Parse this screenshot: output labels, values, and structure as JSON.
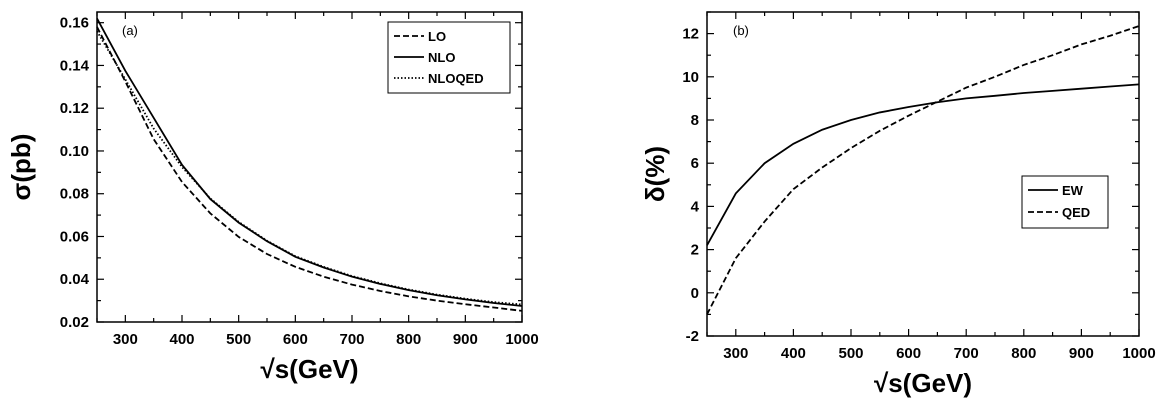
{
  "chart_data": [
    {
      "type": "line",
      "panel_label": "(a)",
      "xlabel": "√s(GeV)",
      "ylabel": "σ(pb)",
      "xlim": [
        250,
        1000
      ],
      "ylim": [
        0.02,
        0.165
      ],
      "xticks": [
        "300",
        "400",
        "500",
        "600",
        "700",
        "800",
        "900",
        "1000"
      ],
      "yticks": [
        "0.02",
        "0.04",
        "0.06",
        "0.08",
        "0.10",
        "0.12",
        "0.14",
        "0.16"
      ],
      "legend_position": "top-right",
      "x": [
        250,
        300,
        350,
        400,
        450,
        500,
        550,
        600,
        650,
        700,
        750,
        800,
        850,
        900,
        950,
        1000
      ],
      "series": [
        {
          "name": "LO",
          "style": "dashed",
          "values": [
            0.158,
            0.1325,
            0.1055,
            0.0855,
            0.0708,
            0.0598,
            0.0518,
            0.0458,
            0.0412,
            0.0375,
            0.0345,
            0.032,
            0.03,
            0.0283,
            0.0268,
            0.0252
          ]
        },
        {
          "name": "NLO",
          "style": "solid",
          "values": [
            0.162,
            0.1375,
            0.1155,
            0.0935,
            0.0775,
            0.0665,
            0.0578,
            0.0505,
            0.0455,
            0.0412,
            0.0378,
            0.0349,
            0.0325,
            0.0306,
            0.0289,
            0.0275
          ]
        },
        {
          "name": "NLOQED",
          "style": "dotted",
          "values": [
            0.156,
            0.1335,
            0.1105,
            0.0925,
            0.0778,
            0.0668,
            0.058,
            0.0508,
            0.0458,
            0.0415,
            0.0381,
            0.0352,
            0.0328,
            0.0309,
            0.0293,
            0.0282
          ]
        }
      ]
    },
    {
      "type": "line",
      "panel_label": "(b)",
      "xlabel": "√s(GeV)",
      "ylabel": "δ(%)",
      "xlim": [
        250,
        1000
      ],
      "ylim": [
        -2,
        13
      ],
      "xticks": [
        "300",
        "400",
        "500",
        "600",
        "700",
        "800",
        "900",
        "1000"
      ],
      "yticks": [
        "-2",
        "0",
        "2",
        "4",
        "6",
        "8",
        "10",
        "12"
      ],
      "legend_position": "center-right",
      "x": [
        250,
        300,
        350,
        400,
        450,
        500,
        550,
        600,
        650,
        700,
        750,
        800,
        850,
        900,
        950,
        1000
      ],
      "series": [
        {
          "name": "EW",
          "style": "solid",
          "values": [
            2.2,
            4.6,
            6.0,
            6.9,
            7.55,
            8.0,
            8.35,
            8.6,
            8.82,
            9.0,
            9.12,
            9.25,
            9.35,
            9.45,
            9.55,
            9.65
          ]
        },
        {
          "name": "QED",
          "style": "dashed",
          "values": [
            -1.0,
            1.6,
            3.3,
            4.8,
            5.8,
            6.7,
            7.5,
            8.2,
            8.85,
            9.5,
            10.0,
            10.55,
            11.0,
            11.5,
            11.9,
            12.35
          ]
        }
      ]
    }
  ]
}
